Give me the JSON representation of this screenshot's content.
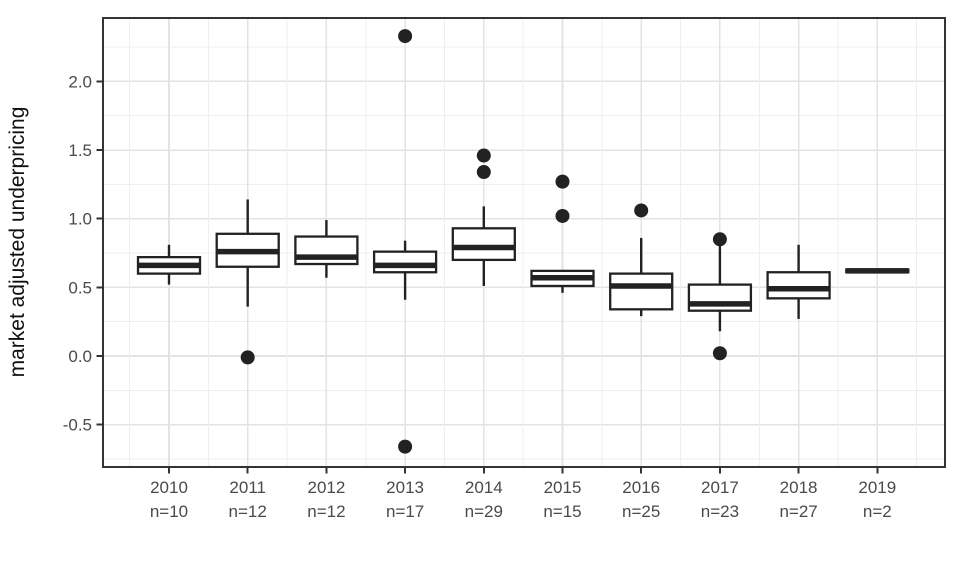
{
  "chart_data": {
    "type": "boxplot",
    "title": "",
    "xlabel": "",
    "ylabel": "market adjusted underpricing",
    "ylim": [
      -0.81,
      2.46
    ],
    "yticks": [
      -0.5,
      0.0,
      0.5,
      1.0,
      1.5,
      2.0
    ],
    "ytick_labels": [
      "-0.5",
      "0.0",
      "0.5",
      "1.0",
      "1.5",
      "2.0"
    ],
    "minor_grid_step": 0.25,
    "grid": true,
    "legend_position": "none",
    "boxes": [
      {
        "year": "2010",
        "n_label": "n=10",
        "n": 10,
        "whisker_low": 0.52,
        "q1": 0.6,
        "median": 0.66,
        "q3": 0.72,
        "whisker_high": 0.81,
        "outliers": []
      },
      {
        "year": "2011",
        "n_label": "n=12",
        "n": 12,
        "whisker_low": 0.36,
        "q1": 0.65,
        "median": 0.76,
        "q3": 0.89,
        "whisker_high": 1.14,
        "outliers": [
          -0.01
        ]
      },
      {
        "year": "2012",
        "n_label": "n=12",
        "n": 12,
        "whisker_low": 0.57,
        "q1": 0.67,
        "median": 0.72,
        "q3": 0.87,
        "whisker_high": 0.99,
        "outliers": []
      },
      {
        "year": "2013",
        "n_label": "n=17",
        "n": 17,
        "whisker_low": 0.41,
        "q1": 0.61,
        "median": 0.66,
        "q3": 0.76,
        "whisker_high": 0.84,
        "outliers": [
          2.33,
          -0.66
        ]
      },
      {
        "year": "2014",
        "n_label": "n=29",
        "n": 29,
        "whisker_low": 0.51,
        "q1": 0.7,
        "median": 0.79,
        "q3": 0.93,
        "whisker_high": 1.09,
        "outliers": [
          1.46,
          1.34
        ]
      },
      {
        "year": "2015",
        "n_label": "n=15",
        "n": 15,
        "whisker_low": 0.46,
        "q1": 0.51,
        "median": 0.57,
        "q3": 0.62,
        "whisker_high": 0.62,
        "outliers": [
          1.27,
          1.02
        ]
      },
      {
        "year": "2016",
        "n_label": "n=25",
        "n": 25,
        "whisker_low": 0.29,
        "q1": 0.34,
        "median": 0.51,
        "q3": 0.6,
        "whisker_high": 0.86,
        "outliers": [
          1.06
        ]
      },
      {
        "year": "2017",
        "n_label": "n=23",
        "n": 23,
        "whisker_low": 0.18,
        "q1": 0.33,
        "median": 0.38,
        "q3": 0.52,
        "whisker_high": 0.82,
        "outliers": [
          0.85,
          0.02
        ]
      },
      {
        "year": "2018",
        "n_label": "n=27",
        "n": 27,
        "whisker_low": 0.27,
        "q1": 0.42,
        "median": 0.49,
        "q3": 0.61,
        "whisker_high": 0.81,
        "outliers": []
      },
      {
        "year": "2019",
        "n_label": "n=2",
        "n": 2,
        "whisker_low": 0.61,
        "q1": 0.61,
        "median": 0.62,
        "q3": 0.63,
        "whisker_high": 0.63,
        "outliers": []
      }
    ],
    "colors": {
      "box_fill": "#ffffff",
      "box_stroke": "#222222",
      "median_stroke": "#222222",
      "outlier_fill": "#222222",
      "grid_major": "#e3e3e3",
      "grid_minor": "#efefef",
      "panel_border": "#333333",
      "tick_mark": "#333333",
      "axis_text": "#4a4a4a",
      "axis_title_text": "#111111",
      "background": "#ffffff"
    }
  }
}
